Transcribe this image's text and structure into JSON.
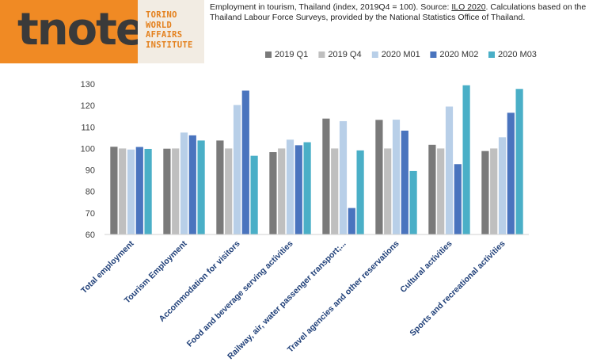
{
  "brand": {
    "logo": "tnote",
    "institute_lines": [
      "TORINO",
      "WORLD",
      "AFFAIRS",
      "INSTITUTE"
    ]
  },
  "caption": {
    "part1": "Employment in tourism, Thailand (index, 2019Q4 = 100). Source: ",
    "link": "ILO 2020",
    "part2": ". Calculations based on the Thailand Labour Force Surveys, provided by the National Statistics Office of Thailand."
  },
  "chart_data": {
    "type": "bar",
    "title": "Employment in tourism, Thailand (index, 2019Q4 = 100)",
    "xlabel": "",
    "ylabel": "",
    "ylim": [
      60,
      130
    ],
    "yticks": [
      60,
      70,
      80,
      90,
      100,
      110,
      120,
      130
    ],
    "grid": false,
    "legend_position": "top-right",
    "categories": [
      "Total employment",
      "Tourism Employment",
      "Accommodation for visitors",
      "Food and beverage serving activities",
      "Railway, air, water passenger transport;...",
      "Travel agencies and other reservations",
      "Cultural activities",
      "Sports and recreational activities"
    ],
    "series": [
      {
        "name": "2019 Q1",
        "color": "#7a7a7a",
        "values": [
          100.8,
          99.9,
          103.7,
          98.3,
          113.9,
          113.3,
          101.7,
          98.8
        ]
      },
      {
        "name": "2019 Q4",
        "color": "#bfbfbf",
        "values": [
          100,
          100,
          100,
          100,
          100,
          100,
          100,
          100
        ]
      },
      {
        "name": "2020 M01",
        "color": "#b8cfe8",
        "values": [
          99.5,
          107.4,
          120.2,
          104.1,
          112.7,
          113.4,
          119.5,
          105.2
        ]
      },
      {
        "name": "2020 M02",
        "color": "#4a74be",
        "values": [
          100.7,
          106.1,
          126.9,
          101.5,
          72.3,
          108.3,
          92.7,
          116.6
        ]
      },
      {
        "name": "2020 M03",
        "color": "#4aafc7",
        "values": [
          99.8,
          103.7,
          96.6,
          102.9,
          99.1,
          89.5,
          129.4,
          127.7
        ]
      }
    ]
  }
}
